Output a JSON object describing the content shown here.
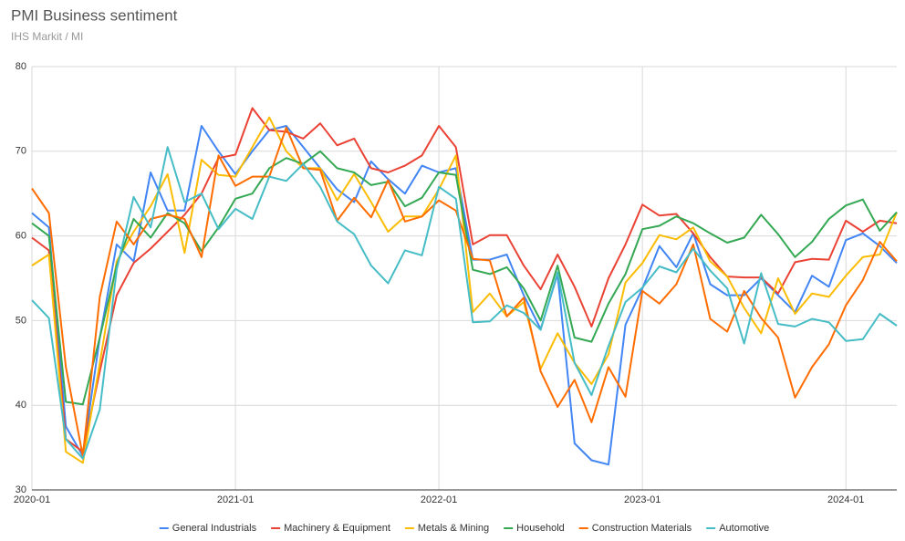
{
  "chart_data": {
    "type": "line",
    "title": "PMI Business sentiment",
    "subtitle": "IHS Markit / MI",
    "x": [
      "2020-01",
      "2020-02",
      "2020-03",
      "2020-04",
      "2020-05",
      "2020-06",
      "2020-07",
      "2020-08",
      "2020-09",
      "2020-10",
      "2020-11",
      "2020-12",
      "2021-01",
      "2021-02",
      "2021-03",
      "2021-04",
      "2021-05",
      "2021-06",
      "2021-07",
      "2021-08",
      "2021-09",
      "2021-10",
      "2021-11",
      "2021-12",
      "2022-01",
      "2022-02",
      "2022-03",
      "2022-04",
      "2022-05",
      "2022-06",
      "2022-07",
      "2022-08",
      "2022-09",
      "2022-10",
      "2022-11",
      "2022-12",
      "2023-01",
      "2023-02",
      "2023-03",
      "2023-04",
      "2023-05",
      "2023-06",
      "2023-07",
      "2023-08",
      "2023-09",
      "2023-10",
      "2023-11",
      "2023-12",
      "2024-01",
      "2024-02",
      "2024-03",
      "2024-04"
    ],
    "xticks": [
      "2020-01",
      "2021-01",
      "2022-01",
      "2023-01",
      "2024-01"
    ],
    "ylim": [
      30,
      80
    ],
    "yticks": [
      30,
      40,
      50,
      60,
      70,
      80
    ],
    "grid": true,
    "legend": "bottom",
    "series": [
      {
        "name": "General Industrials",
        "color": "#4285f4",
        "values": [
          62.7,
          61,
          37.5,
          34,
          48,
          59,
          57,
          67.5,
          63,
          63,
          73,
          70,
          67.3,
          70,
          72.5,
          73,
          70.5,
          68,
          65.5,
          64,
          68.8,
          66.7,
          65,
          68.3,
          67.5,
          68,
          57.2,
          57.2,
          57.8,
          53,
          49,
          55.5,
          35.5,
          33.5,
          33,
          49.5,
          53.8,
          58.8,
          56.3,
          60.3,
          54.3,
          53,
          53,
          55,
          53,
          51,
          55.3,
          54,
          59.5,
          60.3,
          58.8,
          56.8
        ]
      },
      {
        "name": "Machinery & Equipment",
        "color": "#ea4335",
        "values": [
          59.8,
          58.3,
          36,
          34.5,
          44,
          53,
          56.8,
          58.5,
          60.5,
          62.5,
          65,
          69.2,
          69.6,
          75.1,
          72.5,
          72.3,
          71.5,
          73.3,
          70.7,
          71.5,
          68,
          67.5,
          68.3,
          69.5,
          73,
          70.5,
          59,
          60.1,
          60.1,
          56.5,
          53.7,
          57.8,
          54,
          49.3,
          55,
          59,
          63.7,
          62.4,
          62.6,
          60.3,
          57.5,
          55.2,
          55.1,
          55.1,
          53.2,
          56.9,
          57.3,
          57.2,
          61.8,
          60.5,
          61.8,
          61.5
        ]
      },
      {
        "name": "Metals & Mining",
        "color": "#fbbc04",
        "values": [
          56.5,
          57.8,
          34.5,
          33.2,
          45,
          57,
          60.5,
          63.5,
          67.3,
          58,
          69,
          67.2,
          67,
          70.5,
          74,
          70,
          68,
          68,
          64.2,
          67.3,
          64,
          60.5,
          62.3,
          62.3,
          65.5,
          69.5,
          51,
          53.2,
          50.5,
          52.2,
          44.3,
          48.5,
          45,
          42.5,
          46,
          54.5,
          56.8,
          60.1,
          59.6,
          61,
          57,
          55.2,
          51.5,
          48.5,
          55,
          50.8,
          53.2,
          52.8,
          55.3,
          57.5,
          57.8,
          62.8
        ]
      },
      {
        "name": "Household",
        "color": "#34a853",
        "values": [
          61.5,
          60,
          40.4,
          40.1,
          48,
          56.5,
          62,
          59.8,
          62.7,
          61.5,
          58.2,
          61,
          64.4,
          65,
          68,
          69.2,
          68.5,
          70,
          68,
          67.5,
          66,
          66.4,
          63.5,
          64.5,
          67.5,
          67.2,
          56,
          55.5,
          56.3,
          53.8,
          50,
          56.5,
          48,
          47.5,
          52,
          55.5,
          60.8,
          61.2,
          62.3,
          61.5,
          60.3,
          59.2,
          59.8,
          62.5,
          60.2,
          57.5,
          59.3,
          62,
          63.6,
          64.3,
          60.6,
          62.8
        ]
      },
      {
        "name": "Construction Materials",
        "color": "#ff6d01",
        "values": [
          65.6,
          62.7,
          44.5,
          34,
          52.8,
          61.7,
          59,
          62,
          62.5,
          62,
          57.5,
          69.5,
          65.9,
          67,
          67,
          72.8,
          68,
          67.8,
          61.8,
          64.5,
          62.2,
          66.6,
          61.7,
          62.3,
          64.2,
          63,
          57.3,
          57.1,
          50.5,
          52.7,
          44,
          39.8,
          43,
          38,
          44.5,
          41,
          53.5,
          52,
          54.3,
          59,
          50.2,
          48.7,
          53.5,
          50.3,
          48,
          40.9,
          44.5,
          47.2,
          51.8,
          54.8,
          59.3,
          57
        ]
      },
      {
        "name": "Automotive",
        "color": "#46bdc6",
        "values": [
          52.4,
          50.3,
          36,
          33.7,
          39.5,
          56,
          64.6,
          61,
          70.5,
          64,
          65,
          60.8,
          63.2,
          62,
          67,
          66.5,
          68.5,
          65.8,
          61.7,
          60.2,
          56.5,
          54.4,
          58.3,
          57.7,
          65.8,
          64.4,
          49.8,
          49.9,
          51.8,
          50.9,
          48.9,
          55.7,
          45,
          41.2,
          47,
          52.2,
          53.9,
          56.4,
          55.7,
          58.5,
          55.9,
          53.8,
          47.3,
          55.6,
          49.6,
          49.3,
          50.2,
          49.8,
          47.6,
          47.8,
          50.8,
          49.4
        ]
      }
    ]
  }
}
